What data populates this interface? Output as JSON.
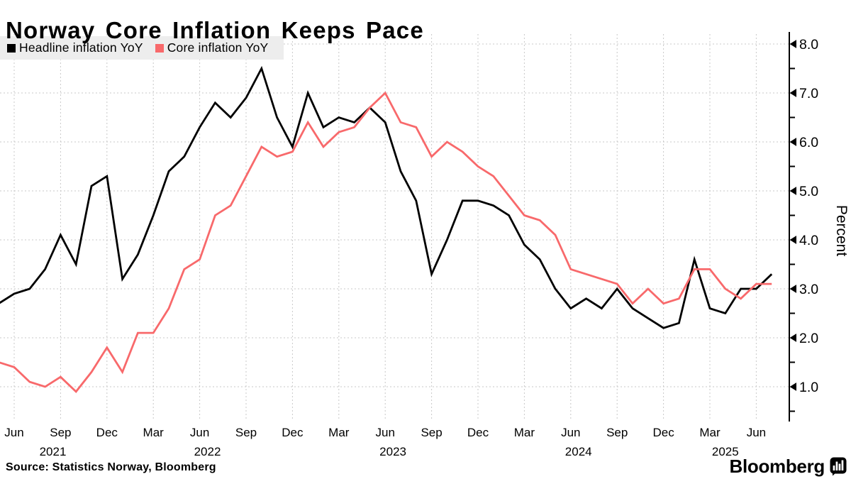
{
  "header": {
    "title": "Norway Core Inflation Keeps Pace"
  },
  "legend": {
    "items": [
      {
        "label": "Headline inflation YoY",
        "color": "#000000"
      },
      {
        "label": "Core inflation YoY",
        "color": "#f8696b"
      }
    ]
  },
  "footer": {
    "source": "Source: Statistics Norway, Bloomberg",
    "brand": "Bloomberg"
  },
  "chart_data": {
    "type": "line",
    "title": "Norway Core Inflation Keeps Pace",
    "ylabel": "Percent",
    "ylim": [
      0.3,
      8.25
    ],
    "grid": true,
    "legend_position": "top-left",
    "x_unit": "month",
    "x": [
      "2021-05",
      "2021-06",
      "2021-07",
      "2021-08",
      "2021-09",
      "2021-10",
      "2021-11",
      "2021-12",
      "2022-01",
      "2022-02",
      "2022-03",
      "2022-04",
      "2022-05",
      "2022-06",
      "2022-07",
      "2022-08",
      "2022-09",
      "2022-10",
      "2022-11",
      "2022-12",
      "2023-01",
      "2023-02",
      "2023-03",
      "2023-04",
      "2023-05",
      "2023-06",
      "2023-07",
      "2023-08",
      "2023-09",
      "2023-10",
      "2023-11",
      "2023-12",
      "2024-01",
      "2024-02",
      "2024-03",
      "2024-04",
      "2024-05",
      "2024-06",
      "2024-07",
      "2024-08",
      "2024-09",
      "2024-10",
      "2024-11",
      "2024-12",
      "2025-01",
      "2025-02",
      "2025-03",
      "2025-04",
      "2025-05",
      "2025-06",
      "2025-07"
    ],
    "x_tick_labels": [
      "Jun",
      "Sep",
      "Dec",
      "Mar",
      "Jun",
      "Sep",
      "Dec",
      "Mar",
      "Jun",
      "Sep",
      "Dec",
      "Mar",
      "Jun",
      "Sep",
      "Dec",
      "Mar",
      "Jun"
    ],
    "x_year_labels": [
      "2021",
      "2022",
      "2023",
      "2024",
      "2025"
    ],
    "y_ticks": [
      {
        "value": 8,
        "label": "8.0"
      },
      {
        "value": 7,
        "label": "7.0"
      },
      {
        "value": 6,
        "label": "6.0"
      },
      {
        "value": 5,
        "label": "5.0"
      },
      {
        "value": 4,
        "label": "4.0"
      },
      {
        "value": 3,
        "label": "3.0"
      },
      {
        "value": 2,
        "label": "2.0"
      },
      {
        "value": 1,
        "label": "1.0"
      }
    ],
    "series": [
      {
        "name": "Headline inflation YoY",
        "color": "#000000",
        "values": [
          2.7,
          2.9,
          3.0,
          3.4,
          4.1,
          3.5,
          5.1,
          5.3,
          3.2,
          3.7,
          4.5,
          5.4,
          5.7,
          6.3,
          6.8,
          6.5,
          6.9,
          7.5,
          6.5,
          5.9,
          7.0,
          6.3,
          6.5,
          6.4,
          6.7,
          6.4,
          5.4,
          4.8,
          3.3,
          4.0,
          4.8,
          4.8,
          4.7,
          4.5,
          3.9,
          3.6,
          3.0,
          2.6,
          2.8,
          2.6,
          3.0,
          2.6,
          2.4,
          2.2,
          2.3,
          3.6,
          2.6,
          2.5,
          3.0,
          3.0,
          3.3
        ]
      },
      {
        "name": "Core inflation YoY",
        "color": "#f8696b",
        "values": [
          1.5,
          1.4,
          1.1,
          1.0,
          1.2,
          0.9,
          1.3,
          1.8,
          1.3,
          2.1,
          2.1,
          2.6,
          3.4,
          3.6,
          4.5,
          4.7,
          5.3,
          5.9,
          5.7,
          5.8,
          6.4,
          5.9,
          6.2,
          6.3,
          6.7,
          7.0,
          6.4,
          6.3,
          5.7,
          6.0,
          5.8,
          5.5,
          5.3,
          4.9,
          4.5,
          4.4,
          4.1,
          3.4,
          3.3,
          3.2,
          3.1,
          2.7,
          3.0,
          2.7,
          2.8,
          3.4,
          3.4,
          3.0,
          2.8,
          3.1,
          3.1
        ]
      }
    ]
  }
}
